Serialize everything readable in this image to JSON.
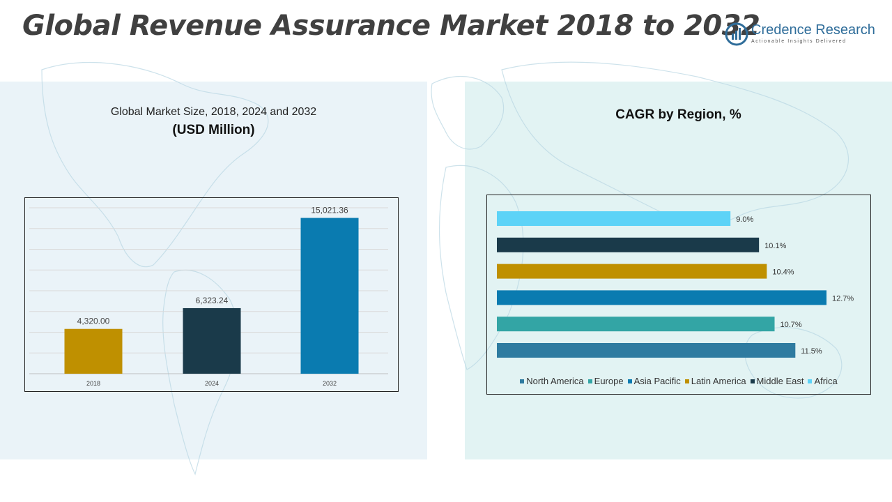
{
  "title": "Global Revenue Assurance Market 2018 to 2032",
  "logo": {
    "name": "Credence Research",
    "tagline": "Actionable Insights Delivered"
  },
  "left_panel": {
    "title_line1": "Global Market Size, 2018, 2024 and 2032",
    "title_line2": "(USD Million)"
  },
  "right_panel": {
    "title": "CAGR by Region, %"
  },
  "chart_data": [
    {
      "type": "bar",
      "title": "Global Market Size, 2018, 2024 and 2032 (USD Million)",
      "categories": [
        "2018",
        "2024",
        "2032"
      ],
      "values": [
        4320.0,
        6323.24,
        15021.36
      ],
      "labels": [
        "4,320.00",
        "6,323.24",
        "15,021.36"
      ],
      "colors": [
        "#bf9000",
        "#1a3a4a",
        "#0a7bb0"
      ],
      "ylim": [
        0,
        16000
      ],
      "grid": true
    },
    {
      "type": "bar",
      "orientation": "horizontal",
      "title": "CAGR by Region, %",
      "categories": [
        "Africa",
        "Middle East",
        "Latin America",
        "Asia Pacific",
        "Europe",
        "North America"
      ],
      "values": [
        9.0,
        10.1,
        10.4,
        12.7,
        10.7,
        11.5
      ],
      "labels": [
        "9.0%",
        "10.1%",
        "10.4%",
        "12.7%",
        "10.7%",
        "11.5%"
      ],
      "colors": [
        "#5dd3f7",
        "#1a3a4a",
        "#bf9000",
        "#0a7bb0",
        "#33a5a5",
        "#2e7ba0"
      ],
      "xlim": [
        0,
        12.7
      ],
      "legend": [
        "North America",
        "Europe",
        "Asia Pacific",
        "Latin America",
        "Middle East",
        "Africa"
      ],
      "legend_colors": [
        "#2e7ba0",
        "#33a5a5",
        "#0a7bb0",
        "#bf9000",
        "#1a3a4a",
        "#5dd3f7"
      ],
      "legend_position": "bottom"
    }
  ]
}
